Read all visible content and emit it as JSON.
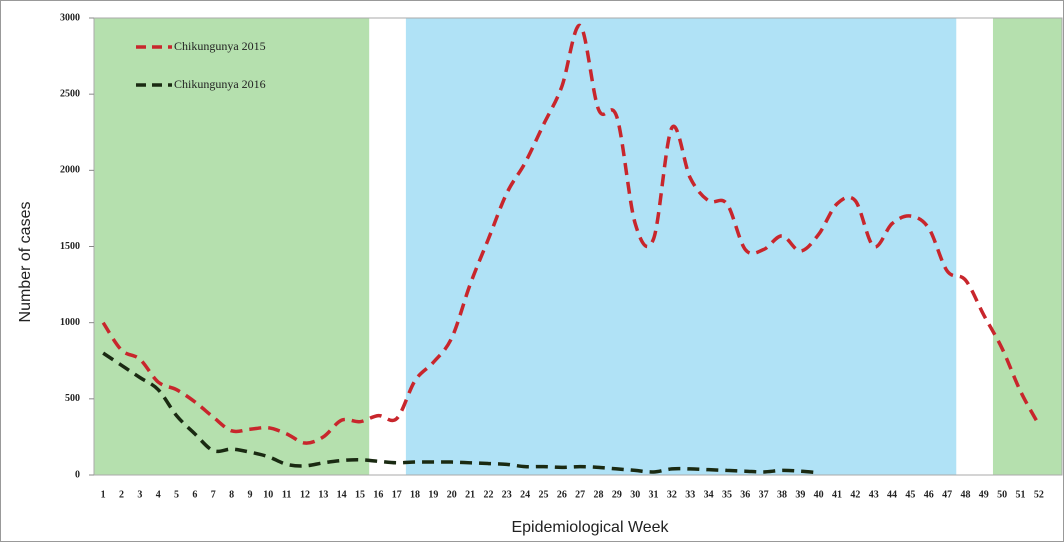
{
  "chart_data": {
    "type": "line",
    "x_label": "Epidemiological Week",
    "y_label": "Number of cases",
    "categories": [
      "1",
      "2",
      "3",
      "4",
      "5",
      "6",
      "7",
      "8",
      "9",
      "10",
      "11",
      "12",
      "13",
      "14",
      "15",
      "16",
      "17",
      "18",
      "19",
      "20",
      "21",
      "22",
      "23",
      "24",
      "25",
      "26",
      "27",
      "28",
      "29",
      "30",
      "31",
      "32",
      "33",
      "34",
      "35",
      "36",
      "37",
      "38",
      "39",
      "40",
      "41",
      "42",
      "43",
      "44",
      "45",
      "46",
      "47",
      "48",
      "49",
      "50",
      "51",
      "52"
    ],
    "series": [
      {
        "name": "Chikungunya 2015",
        "color": "#c8262c",
        "values": [
          1000,
          820,
          760,
          610,
          560,
          480,
          380,
          290,
          300,
          310,
          270,
          210,
          250,
          360,
          350,
          390,
          370,
          620,
          740,
          900,
          1250,
          1550,
          1850,
          2050,
          2300,
          2550,
          2950,
          2400,
          2350,
          1650,
          1550,
          2280,
          1950,
          1800,
          1780,
          1480,
          1480,
          1570,
          1470,
          1580,
          1780,
          1800,
          1500,
          1650,
          1700,
          1620,
          1340,
          1280,
          1050,
          830,
          550,
          330
        ]
      },
      {
        "name": "Chikungunya 2016",
        "color": "#1a2a12",
        "values": [
          800,
          720,
          640,
          560,
          390,
          270,
          160,
          170,
          150,
          120,
          70,
          60,
          80,
          95,
          100,
          90,
          80,
          85,
          85,
          85,
          80,
          75,
          70,
          55,
          55,
          50,
          55,
          50,
          40,
          30,
          20,
          40,
          40,
          35,
          30,
          25,
          20,
          30,
          25,
          15,
          null,
          null,
          null,
          null,
          null,
          null,
          null,
          null,
          null,
          null,
          null,
          null
        ]
      }
    ],
    "shading": [
      {
        "first": "1",
        "last": "15",
        "color": "#b5e0ae"
      },
      {
        "first": "18",
        "last": "47",
        "color": "#b0e2f6"
      },
      {
        "first": "50",
        "last": "52",
        "color": "#b5e0ae"
      }
    ],
    "ylim": [
      0,
      3000
    ],
    "yticks": [
      0,
      500,
      1000,
      1500,
      2000,
      2500,
      3000
    ]
  }
}
